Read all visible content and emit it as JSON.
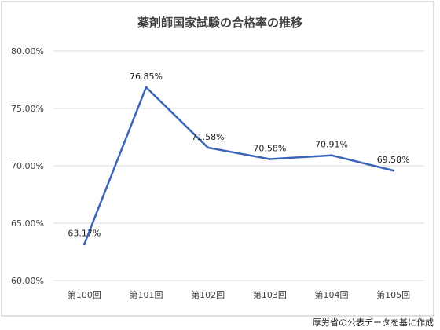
{
  "chart_data": {
    "type": "line",
    "title": "薬剤師国家試験の合格率の推移",
    "categories": [
      "第100回",
      "第101回",
      "第102回",
      "第103回",
      "第104回",
      "第105回"
    ],
    "series": [
      {
        "values": [
          63.17,
          76.85,
          71.58,
          70.58,
          70.91,
          69.58
        ],
        "data_labels": [
          "63.17%",
          "76.85%",
          "71.58%",
          "70.58%",
          "70.91%",
          "69.58%"
        ]
      }
    ],
    "ylim": [
      60,
      80
    ],
    "yticks": [
      60,
      65,
      70,
      75,
      80
    ],
    "ytick_labels": [
      "60.00%",
      "65.00%",
      "70.00%",
      "75.00%",
      "80.00%"
    ],
    "grid": true,
    "legend": "none",
    "xlabel": "",
    "ylabel": ""
  },
  "source_note": "厚労省の公表データを基に作成",
  "colors": {
    "line": "#3a64b8",
    "grid": "#d9d9d9",
    "border": "#bfbfbf",
    "text": "#404040"
  }
}
